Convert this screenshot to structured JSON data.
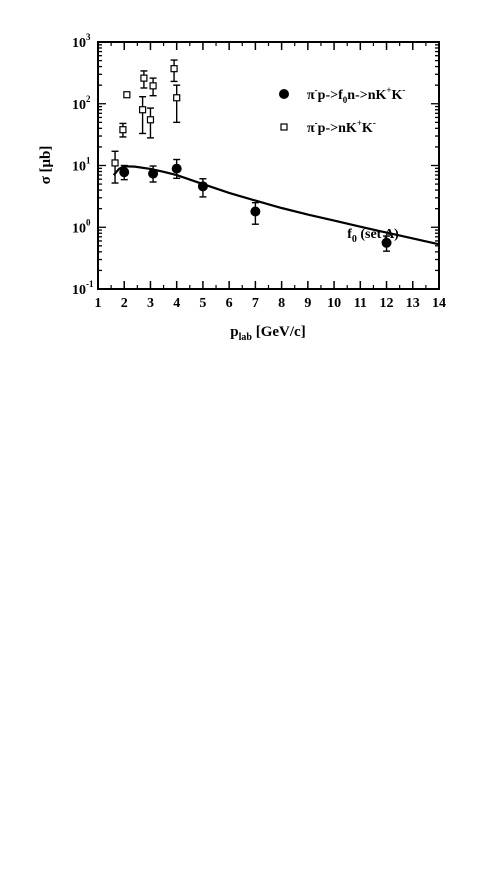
{
  "chart_data": {
    "type": "scatter",
    "xlabel": {
      "main": "p",
      "sub": "lab",
      "rest": " [GeV/c]"
    },
    "ylabel": "σ [μb]",
    "xlim": [
      1,
      14
    ],
    "ylim": [
      0.1,
      1000
    ],
    "yscale": "log",
    "grid": false,
    "legend_position": "top-right",
    "x_ticks": [
      1,
      2,
      3,
      4,
      5,
      6,
      7,
      8,
      9,
      10,
      11,
      12,
      13,
      14
    ],
    "y_ticks": [
      {
        "value": 0.1,
        "base": "10",
        "exp": "-1"
      },
      {
        "value": 1,
        "base": "10",
        "exp": "0"
      },
      {
        "value": 10,
        "base": "10",
        "exp": "1"
      },
      {
        "value": 100,
        "base": "10",
        "exp": "2"
      },
      {
        "value": 1000,
        "base": "10",
        "exp": "3"
      }
    ],
    "legend": [
      {
        "marker": "filled-circle",
        "parts": [
          [
            "π",
            ""
          ],
          [
            "",
            "-"
          ],
          [
            "p->f",
            ""
          ],
          [
            "",
            "0",
            "sub"
          ],
          [
            "n->nK",
            ""
          ],
          [
            "",
            "+"
          ],
          [
            "K",
            ""
          ],
          [
            "",
            "-"
          ]
        ]
      },
      {
        "marker": "open-square",
        "parts": [
          [
            "π",
            ""
          ],
          [
            "",
            "-"
          ],
          [
            "p->nK",
            ""
          ],
          [
            "",
            "+"
          ],
          [
            "K",
            ""
          ],
          [
            "",
            "-"
          ]
        ]
      }
    ],
    "annotation": {
      "main": "f",
      "sub": "0",
      "rest": " (set A)",
      "x": 10.5,
      "y": 0.62
    },
    "series": [
      {
        "marker": "filled-circle",
        "points": [
          {
            "x": 2.0,
            "y": 7.8,
            "lo": 5.9,
            "hi": 10.0
          },
          {
            "x": 3.1,
            "y": 7.4,
            "lo": 5.4,
            "hi": 9.8
          },
          {
            "x": 4.0,
            "y": 8.9,
            "lo": 6.2,
            "hi": 12.5
          },
          {
            "x": 5.0,
            "y": 4.6,
            "lo": 3.1,
            "hi": 6.1
          },
          {
            "x": 7.0,
            "y": 1.8,
            "lo": 1.12,
            "hi": 2.5
          },
          {
            "x": 12.0,
            "y": 0.56,
            "lo": 0.41,
            "hi": 0.72
          }
        ]
      },
      {
        "marker": "open-square",
        "points": [
          {
            "x": 1.65,
            "y": 11.0,
            "lo": 5.2,
            "hi": 17.0
          },
          {
            "x": 1.95,
            "y": 38.0,
            "lo": 29.0,
            "hi": 48.0
          },
          {
            "x": 2.1,
            "y": 140.0,
            "lo": 140.0,
            "hi": 140.0
          },
          {
            "x": 2.7,
            "y": 80.0,
            "lo": 33.0,
            "hi": 130.0
          },
          {
            "x": 2.75,
            "y": 260.0,
            "lo": 180.0,
            "hi": 340.0
          },
          {
            "x": 3.0,
            "y": 55.0,
            "lo": 28.0,
            "hi": 85.0
          },
          {
            "x": 3.1,
            "y": 195.0,
            "lo": 135.0,
            "hi": 260.0
          },
          {
            "x": 3.9,
            "y": 370.0,
            "lo": 230.0,
            "hi": 510.0
          },
          {
            "x": 4.0,
            "y": 125.0,
            "lo": 50.0,
            "hi": 200.0
          }
        ]
      }
    ],
    "curve": {
      "style": "solid",
      "points": [
        [
          1.6,
          7.0
        ],
        [
          1.8,
          8.8
        ],
        [
          2.0,
          9.7
        ],
        [
          2.4,
          9.6
        ],
        [
          3.0,
          8.8
        ],
        [
          3.5,
          7.9
        ],
        [
          4.0,
          7.0
        ],
        [
          5.0,
          5.0
        ],
        [
          6.0,
          3.6
        ],
        [
          7.0,
          2.7
        ],
        [
          8.0,
          2.05
        ],
        [
          9.0,
          1.6
        ],
        [
          10.0,
          1.28
        ],
        [
          11.0,
          1.02
        ],
        [
          12.0,
          0.82
        ],
        [
          13.0,
          0.66
        ],
        [
          14.0,
          0.53
        ]
      ]
    }
  }
}
